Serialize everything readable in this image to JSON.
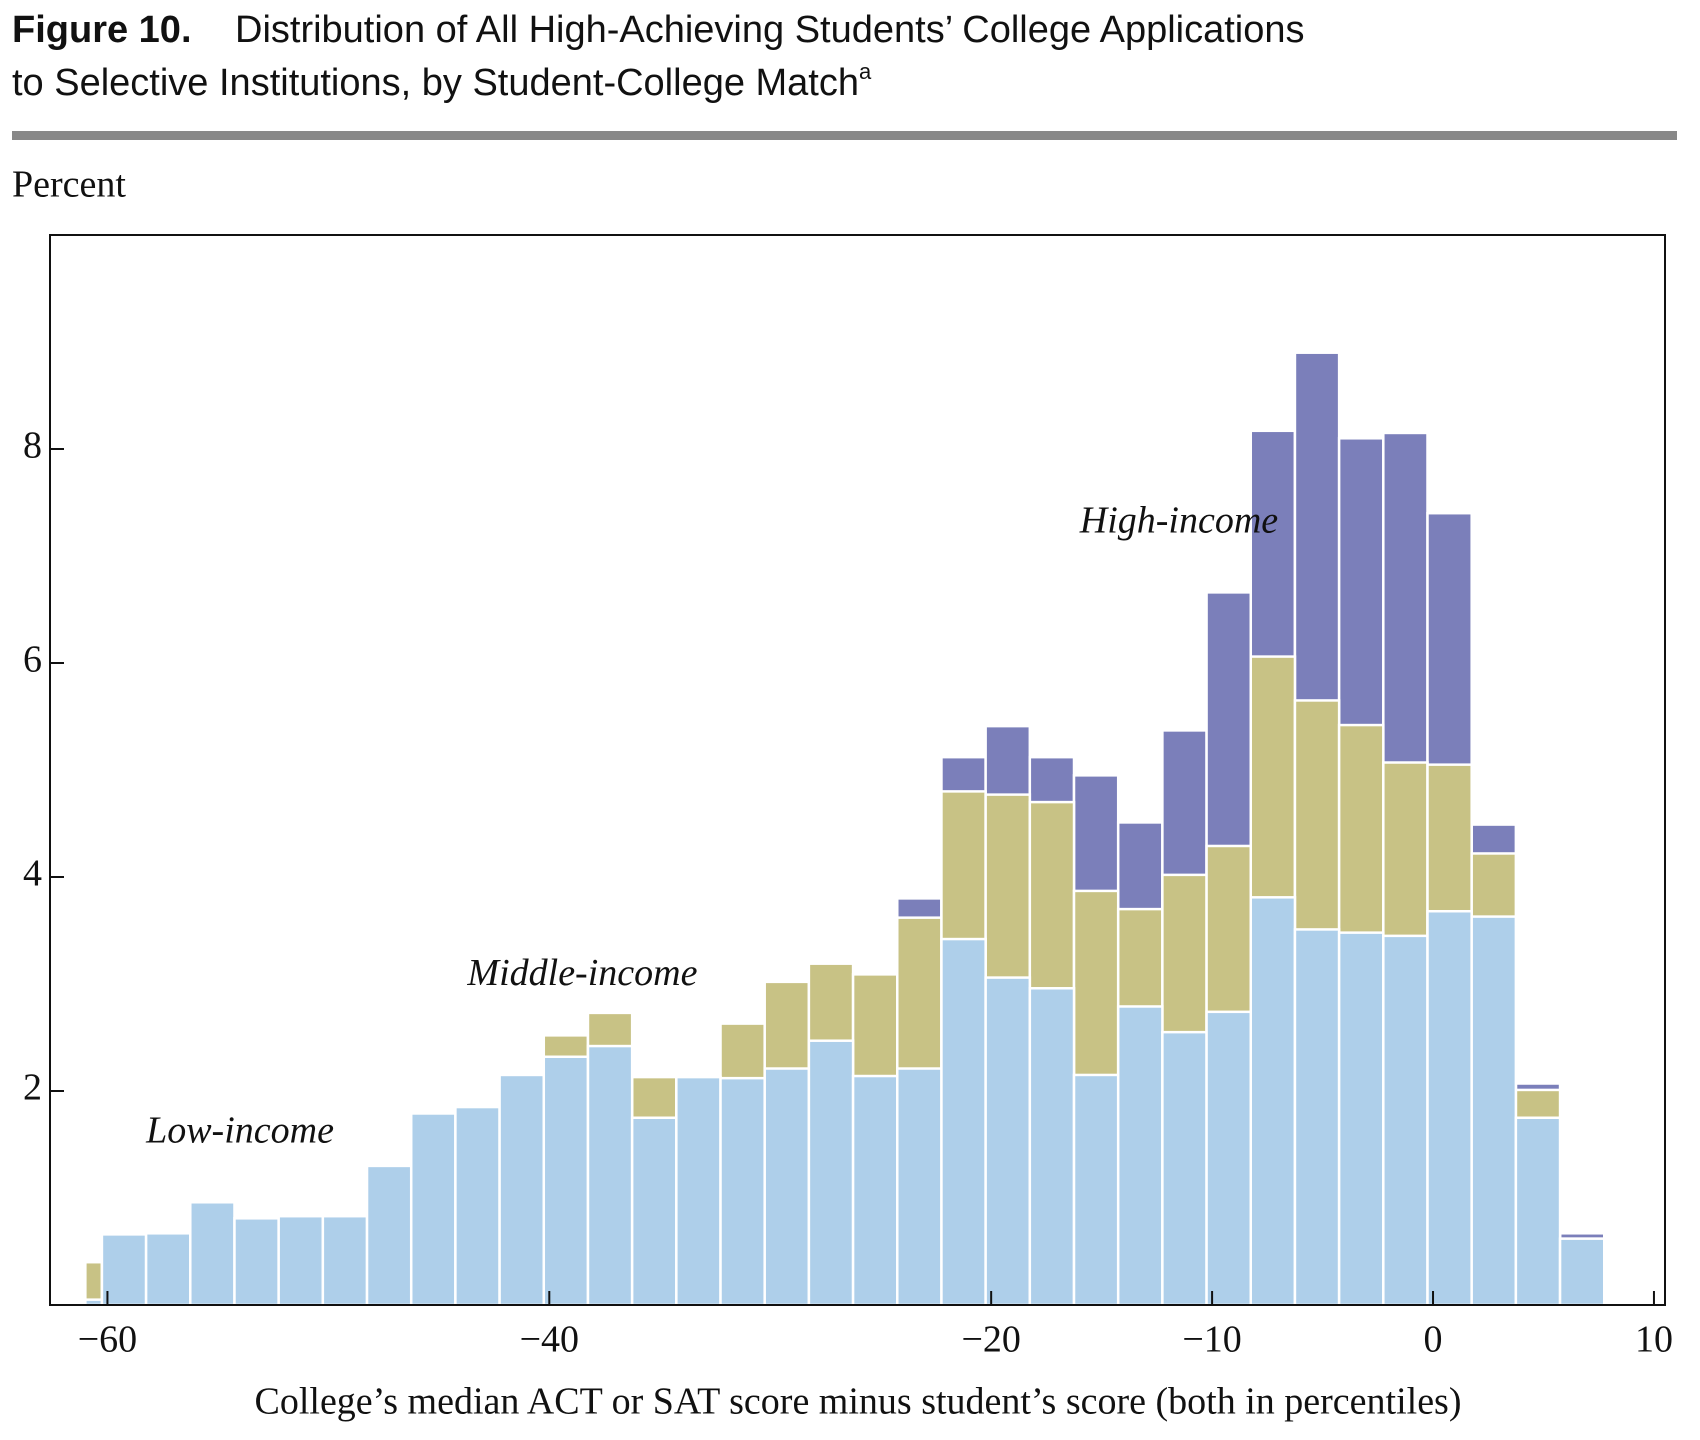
{
  "chart_data": {
    "type": "histogram",
    "title_label": "Figure 10.",
    "title": "Distribution of All High-Achieving Students’ College Applications",
    "title_line2": "to Selective Institutions, by Student-College Match",
    "title_note": "a",
    "y_label": "Percent",
    "x_label": "College’s median ACT or SAT score minus student’s score (both in percentiles)",
    "bins": [
      -61,
      -60.25,
      -58.25,
      -56.25,
      -54.25,
      -52.25,
      -50.25,
      -48.25,
      -46.25,
      -44.25,
      -42.25,
      -40.25,
      -38.25,
      -36.25,
      -34.25,
      -32.25,
      -30.25,
      -28.25,
      -26.25,
      -24.25,
      -22.25,
      -20.25,
      -18.25,
      -16.25,
      -14.25,
      -12.25,
      -10.25,
      -8.25,
      -6.25,
      -4.25,
      -2.25,
      -0.25,
      1.75,
      3.75,
      5.75,
      7.75
    ],
    "series": [
      {
        "name": "High-income",
        "color": "#7b7fba",
        "values": [
          0.1,
          0.66,
          0.67,
          0.96,
          0.81,
          0.83,
          0.83,
          1.3,
          1.79,
          1.85,
          2.15,
          2.52,
          2.73,
          2.13,
          2.13,
          2.63,
          3.02,
          3.19,
          3.09,
          3.8,
          5.12,
          5.41,
          5.12,
          4.95,
          4.51,
          5.37,
          6.66,
          8.17,
          8.9,
          8.1,
          8.15,
          7.4,
          4.49,
          2.07,
          0.67
        ]
      },
      {
        "name": "Middle-income",
        "color": "#c8c285",
        "values": [
          0.4,
          0.66,
          0.67,
          0.96,
          0.81,
          0.83,
          0.83,
          1.3,
          1.79,
          1.85,
          2.15,
          2.52,
          2.73,
          2.13,
          2.13,
          2.63,
          3.02,
          3.19,
          3.09,
          3.62,
          4.8,
          4.77,
          4.7,
          3.87,
          3.7,
          4.02,
          4.29,
          6.06,
          5.65,
          5.42,
          5.07,
          5.05,
          4.22,
          2.01,
          0.62
        ]
      },
      {
        "name": "Low-income",
        "color": "#aecfea",
        "values": [
          0.05,
          0.66,
          0.67,
          0.96,
          0.81,
          0.83,
          0.83,
          1.3,
          1.79,
          1.85,
          2.15,
          2.32,
          2.42,
          1.75,
          2.13,
          2.12,
          2.21,
          2.47,
          2.14,
          2.21,
          3.42,
          3.06,
          2.96,
          2.15,
          2.79,
          2.55,
          2.74,
          3.81,
          3.51,
          3.48,
          3.45,
          3.68,
          3.63,
          1.75,
          0.62
        ]
      }
    ],
    "xlim": [
      -62.6,
      10.5
    ],
    "xticks": [
      {
        "value": -60,
        "label": "−60"
      },
      {
        "value": -40,
        "label": "−40"
      },
      {
        "value": -20,
        "label": "−20"
      },
      {
        "value": -10,
        "label": "−10"
      },
      0,
      10
    ],
    "ylim": [
      0,
      10
    ],
    "yticks": [
      2,
      4,
      6,
      8
    ]
  }
}
